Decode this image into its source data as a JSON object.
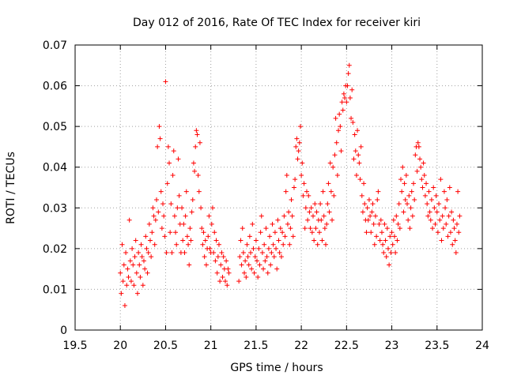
{
  "chart_data": {
    "type": "scatter",
    "title": "Day 012 of 2016, Rate Of TEC Index for receiver kiri",
    "xlabel": "GPS time / hours",
    "ylabel": "ROTI / TECUs",
    "xlim": [
      19.5,
      24
    ],
    "ylim": [
      0,
      0.07
    ],
    "x_ticks": [
      19.5,
      20,
      20.5,
      21,
      21.5,
      22,
      22.5,
      23,
      23.5,
      24
    ],
    "x_tick_labels": [
      "19.5",
      "20",
      "20.5",
      "21",
      "21.5",
      "22",
      "22.5",
      "23",
      "23.5",
      "24"
    ],
    "y_ticks": [
      0,
      0.01,
      0.02,
      0.03,
      0.04,
      0.05,
      0.06,
      0.07
    ],
    "y_tick_labels": [
      "0",
      "0.01",
      "0.02",
      "0.03",
      "0.04",
      "0.05",
      "0.06",
      "0.07"
    ],
    "grid": true,
    "marker": "+",
    "marker_color": "#ff0000",
    "series": [
      {
        "name": "ROTI",
        "x": [
          20.0,
          20.01,
          20.02,
          20.03,
          20.04,
          20.05,
          20.06,
          20.07,
          20.08,
          20.09,
          20.1,
          20.11,
          20.12,
          20.13,
          20.14,
          20.15,
          20.16,
          20.17,
          20.18,
          20.19,
          20.2,
          20.21,
          20.22,
          20.23,
          20.24,
          20.25,
          20.26,
          20.27,
          20.28,
          20.29,
          20.3,
          20.31,
          20.32,
          20.33,
          20.34,
          20.35,
          20.36,
          20.37,
          20.38,
          20.39,
          20.4,
          20.41,
          20.42,
          20.43,
          20.44,
          20.45,
          20.46,
          20.47,
          20.48,
          20.49,
          20.5,
          20.51,
          20.52,
          20.53,
          20.54,
          20.55,
          20.56,
          20.57,
          20.58,
          20.59,
          20.6,
          20.61,
          20.62,
          20.63,
          20.64,
          20.65,
          20.66,
          20.67,
          20.68,
          20.69,
          20.7,
          20.71,
          20.72,
          20.73,
          20.74,
          20.75,
          20.76,
          20.77,
          20.78,
          20.79,
          20.8,
          20.81,
          20.82,
          20.83,
          20.84,
          20.85,
          20.86,
          20.87,
          20.88,
          20.89,
          20.9,
          20.91,
          20.92,
          20.93,
          20.94,
          20.95,
          20.96,
          20.97,
          20.98,
          20.99,
          21.0,
          21.01,
          21.02,
          21.03,
          21.04,
          21.05,
          21.06,
          21.07,
          21.08,
          21.09,
          21.1,
          21.11,
          21.12,
          21.13,
          21.14,
          21.15,
          21.16,
          21.17,
          21.18,
          21.19,
          21.2,
          21.31,
          21.32,
          21.33,
          21.34,
          21.35,
          21.36,
          21.37,
          21.38,
          21.39,
          21.4,
          21.41,
          21.42,
          21.43,
          21.44,
          21.45,
          21.46,
          21.47,
          21.48,
          21.49,
          21.5,
          21.51,
          21.52,
          21.53,
          21.54,
          21.55,
          21.56,
          21.57,
          21.58,
          21.59,
          21.6,
          21.61,
          21.62,
          21.63,
          21.64,
          21.65,
          21.66,
          21.67,
          21.68,
          21.69,
          21.7,
          21.71,
          21.72,
          21.73,
          21.74,
          21.75,
          21.76,
          21.77,
          21.78,
          21.79,
          21.8,
          21.81,
          21.82,
          21.83,
          21.84,
          21.85,
          21.86,
          21.87,
          21.88,
          21.89,
          21.9,
          21.91,
          21.92,
          21.93,
          21.94,
          21.95,
          21.96,
          21.97,
          21.98,
          21.99,
          22.0,
          22.01,
          22.02,
          22.03,
          22.04,
          22.05,
          22.06,
          22.07,
          22.08,
          22.09,
          22.1,
          22.11,
          22.12,
          22.13,
          22.14,
          22.15,
          22.16,
          22.17,
          22.18,
          22.19,
          22.2,
          22.21,
          22.22,
          22.23,
          22.24,
          22.25,
          22.26,
          22.27,
          22.28,
          22.29,
          22.3,
          22.31,
          22.32,
          22.33,
          22.34,
          22.35,
          22.36,
          22.37,
          22.38,
          22.39,
          22.4,
          22.41,
          22.42,
          22.43,
          22.44,
          22.45,
          22.46,
          22.47,
          22.48,
          22.49,
          22.5,
          22.51,
          22.52,
          22.53,
          22.54,
          22.55,
          22.56,
          22.57,
          22.58,
          22.59,
          22.6,
          22.61,
          22.62,
          22.63,
          22.64,
          22.65,
          22.66,
          22.67,
          22.68,
          22.69,
          22.7,
          22.71,
          22.72,
          22.73,
          22.74,
          22.75,
          22.76,
          22.77,
          22.78,
          22.79,
          22.8,
          22.81,
          22.82,
          22.83,
          22.84,
          22.85,
          22.86,
          22.87,
          22.88,
          22.89,
          22.9,
          22.91,
          22.92,
          22.93,
          22.94,
          22.95,
          22.96,
          22.97,
          22.98,
          22.99,
          23.0,
          23.01,
          23.02,
          23.03,
          23.04,
          23.05,
          23.06,
          23.07,
          23.08,
          23.09,
          23.1,
          23.11,
          23.12,
          23.13,
          23.14,
          23.15,
          23.16,
          23.17,
          23.18,
          23.19,
          23.2,
          23.21,
          23.22,
          23.23,
          23.24,
          23.25,
          23.26,
          23.27,
          23.28,
          23.29,
          23.3,
          23.31,
          23.32,
          23.33,
          23.34,
          23.35,
          23.36,
          23.37,
          23.38,
          23.39,
          23.4,
          23.41,
          23.42,
          23.43,
          23.44,
          23.45,
          23.46,
          23.47,
          23.48,
          23.49,
          23.5,
          23.51,
          23.52,
          23.53,
          23.54,
          23.55,
          23.56,
          23.57,
          23.58,
          23.59,
          23.6,
          23.61,
          23.62,
          23.63,
          23.64,
          23.65,
          23.66,
          23.67,
          23.68,
          23.69,
          23.7,
          23.71,
          23.72,
          23.73,
          23.74,
          23.75
        ],
        "y": [
          0.014,
          0.009,
          0.021,
          0.012,
          0.016,
          0.006,
          0.019,
          0.011,
          0.015,
          0.013,
          0.027,
          0.017,
          0.012,
          0.02,
          0.016,
          0.011,
          0.018,
          0.022,
          0.014,
          0.009,
          0.019,
          0.016,
          0.013,
          0.021,
          0.018,
          0.011,
          0.017,
          0.015,
          0.023,
          0.02,
          0.014,
          0.019,
          0.026,
          0.022,
          0.018,
          0.024,
          0.03,
          0.028,
          0.021,
          0.027,
          0.032,
          0.045,
          0.029,
          0.05,
          0.047,
          0.034,
          0.025,
          0.031,
          0.028,
          0.023,
          0.061,
          0.019,
          0.036,
          0.045,
          0.041,
          0.024,
          0.031,
          0.019,
          0.038,
          0.044,
          0.028,
          0.024,
          0.021,
          0.03,
          0.042,
          0.033,
          0.026,
          0.019,
          0.03,
          0.022,
          0.026,
          0.019,
          0.028,
          0.034,
          0.023,
          0.021,
          0.016,
          0.025,
          0.022,
          0.029,
          0.032,
          0.041,
          0.039,
          0.045,
          0.049,
          0.048,
          0.038,
          0.034,
          0.046,
          0.03,
          0.025,
          0.021,
          0.024,
          0.018,
          0.022,
          0.016,
          0.02,
          0.023,
          0.028,
          0.02,
          0.019,
          0.026,
          0.03,
          0.019,
          0.024,
          0.017,
          0.022,
          0.014,
          0.018,
          0.021,
          0.012,
          0.016,
          0.019,
          0.013,
          0.018,
          0.015,
          0.012,
          0.017,
          0.011,
          0.015,
          0.014,
          0.012,
          0.018,
          0.022,
          0.016,
          0.025,
          0.019,
          0.014,
          0.017,
          0.013,
          0.021,
          0.018,
          0.016,
          0.023,
          0.019,
          0.015,
          0.026,
          0.02,
          0.014,
          0.018,
          0.022,
          0.017,
          0.013,
          0.02,
          0.016,
          0.024,
          0.028,
          0.019,
          0.015,
          0.021,
          0.017,
          0.025,
          0.018,
          0.014,
          0.02,
          0.023,
          0.016,
          0.019,
          0.026,
          0.021,
          0.018,
          0.024,
          0.02,
          0.015,
          0.027,
          0.022,
          0.019,
          0.025,
          0.018,
          0.024,
          0.021,
          0.028,
          0.023,
          0.034,
          0.038,
          0.026,
          0.029,
          0.021,
          0.025,
          0.032,
          0.028,
          0.023,
          0.035,
          0.037,
          0.045,
          0.047,
          0.042,
          0.044,
          0.046,
          0.05,
          0.038,
          0.041,
          0.033,
          0.036,
          0.025,
          0.03,
          0.034,
          0.027,
          0.033,
          0.029,
          0.025,
          0.03,
          0.024,
          0.028,
          0.022,
          0.031,
          0.025,
          0.029,
          0.021,
          0.027,
          0.024,
          0.031,
          0.027,
          0.022,
          0.034,
          0.028,
          0.025,
          0.021,
          0.026,
          0.031,
          0.036,
          0.029,
          0.041,
          0.034,
          0.027,
          0.04,
          0.033,
          0.043,
          0.052,
          0.046,
          0.038,
          0.049,
          0.053,
          0.05,
          0.044,
          0.056,
          0.054,
          0.058,
          0.057,
          0.06,
          0.056,
          0.06,
          0.063,
          0.065,
          0.057,
          0.052,
          0.059,
          0.051,
          0.042,
          0.048,
          0.044,
          0.038,
          0.049,
          0.043,
          0.041,
          0.037,
          0.045,
          0.033,
          0.029,
          0.036,
          0.031,
          0.027,
          0.024,
          0.03,
          0.027,
          0.032,
          0.028,
          0.024,
          0.029,
          0.031,
          0.026,
          0.021,
          0.028,
          0.023,
          0.032,
          0.034,
          0.026,
          0.022,
          0.027,
          0.024,
          0.021,
          0.019,
          0.026,
          0.022,
          0.018,
          0.025,
          0.02,
          0.016,
          0.023,
          0.019,
          0.024,
          0.021,
          0.027,
          0.023,
          0.019,
          0.028,
          0.022,
          0.026,
          0.031,
          0.025,
          0.037,
          0.034,
          0.04,
          0.029,
          0.036,
          0.032,
          0.038,
          0.031,
          0.027,
          0.033,
          0.025,
          0.03,
          0.034,
          0.028,
          0.036,
          0.032,
          0.043,
          0.045,
          0.039,
          0.046,
          0.045,
          0.042,
          0.04,
          0.037,
          0.035,
          0.041,
          0.038,
          0.033,
          0.036,
          0.031,
          0.028,
          0.034,
          0.029,
          0.027,
          0.032,
          0.025,
          0.035,
          0.03,
          0.026,
          0.033,
          0.029,
          0.024,
          0.031,
          0.027,
          0.037,
          0.022,
          0.028,
          0.025,
          0.034,
          0.03,
          0.026,
          0.032,
          0.023,
          0.028,
          0.035,
          0.024,
          0.029,
          0.021,
          0.027,
          0.025,
          0.022,
          0.019,
          0.026,
          0.034,
          0.024,
          0.028
        ]
      }
    ]
  }
}
